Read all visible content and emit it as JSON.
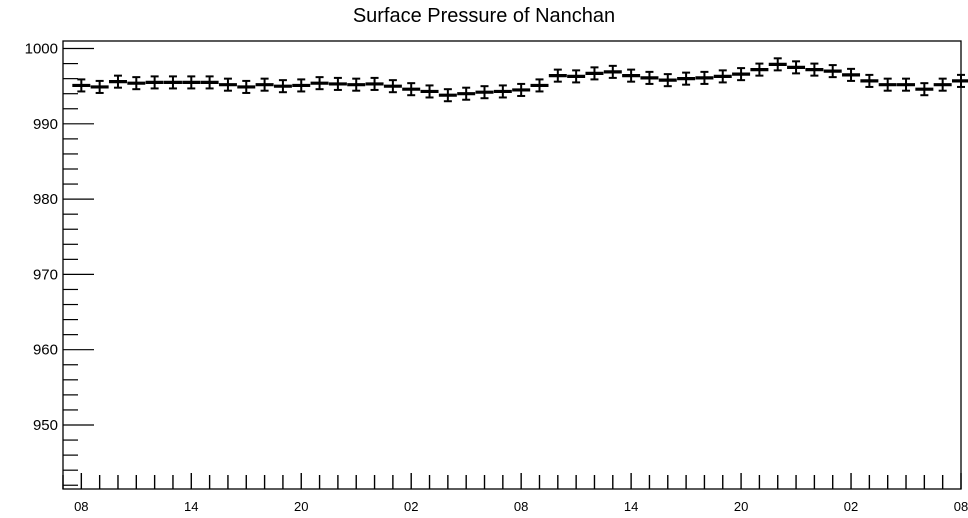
{
  "chart_data": {
    "type": "scatter",
    "title": "Surface Pressure of Nanchan",
    "xlabel": "",
    "ylabel": "",
    "ylim": [
      941.5,
      1001
    ],
    "xlim": [
      0,
      49
    ],
    "y_tick_labels": [
      "1000",
      "990",
      "980",
      "970",
      "960",
      "950"
    ],
    "y_ticks": [
      1000,
      990,
      980,
      970,
      960,
      950
    ],
    "x_tick_labels": [
      "08",
      "14",
      "20",
      "02",
      "08",
      "14",
      "20",
      "02",
      "08"
    ],
    "x_ticks": [
      1,
      7,
      13,
      19,
      25,
      31,
      37,
      43,
      49
    ],
    "error_bar": 0.8,
    "marker_color": "#000000",
    "grid": false,
    "series": [
      {
        "x": [
          1,
          2,
          3,
          4,
          5,
          6,
          7,
          8,
          9,
          10,
          11,
          12,
          13,
          14,
          15,
          16,
          17,
          18,
          19,
          20,
          21,
          22,
          23,
          24,
          25,
          26,
          27,
          28,
          29,
          30,
          31,
          32,
          33,
          34,
          35,
          36,
          37,
          38,
          39,
          40,
          41,
          42,
          43,
          44,
          45,
          46,
          47,
          48,
          49
        ],
        "values": [
          995.1,
          994.9,
          995.6,
          995.4,
          995.5,
          995.5,
          995.5,
          995.5,
          995.2,
          994.9,
          995.2,
          995.0,
          995.1,
          995.4,
          995.3,
          995.2,
          995.3,
          995.0,
          994.6,
          994.3,
          993.8,
          994.0,
          994.2,
          994.3,
          994.5,
          995.1,
          996.4,
          996.3,
          996.7,
          996.9,
          996.4,
          996.1,
          995.8,
          996.0,
          996.1,
          996.3,
          996.6,
          997.2,
          997.9,
          997.5,
          997.2,
          997.0,
          996.5,
          995.7,
          995.2,
          995.2,
          994.6,
          995.2,
          995.7
        ]
      }
    ]
  }
}
